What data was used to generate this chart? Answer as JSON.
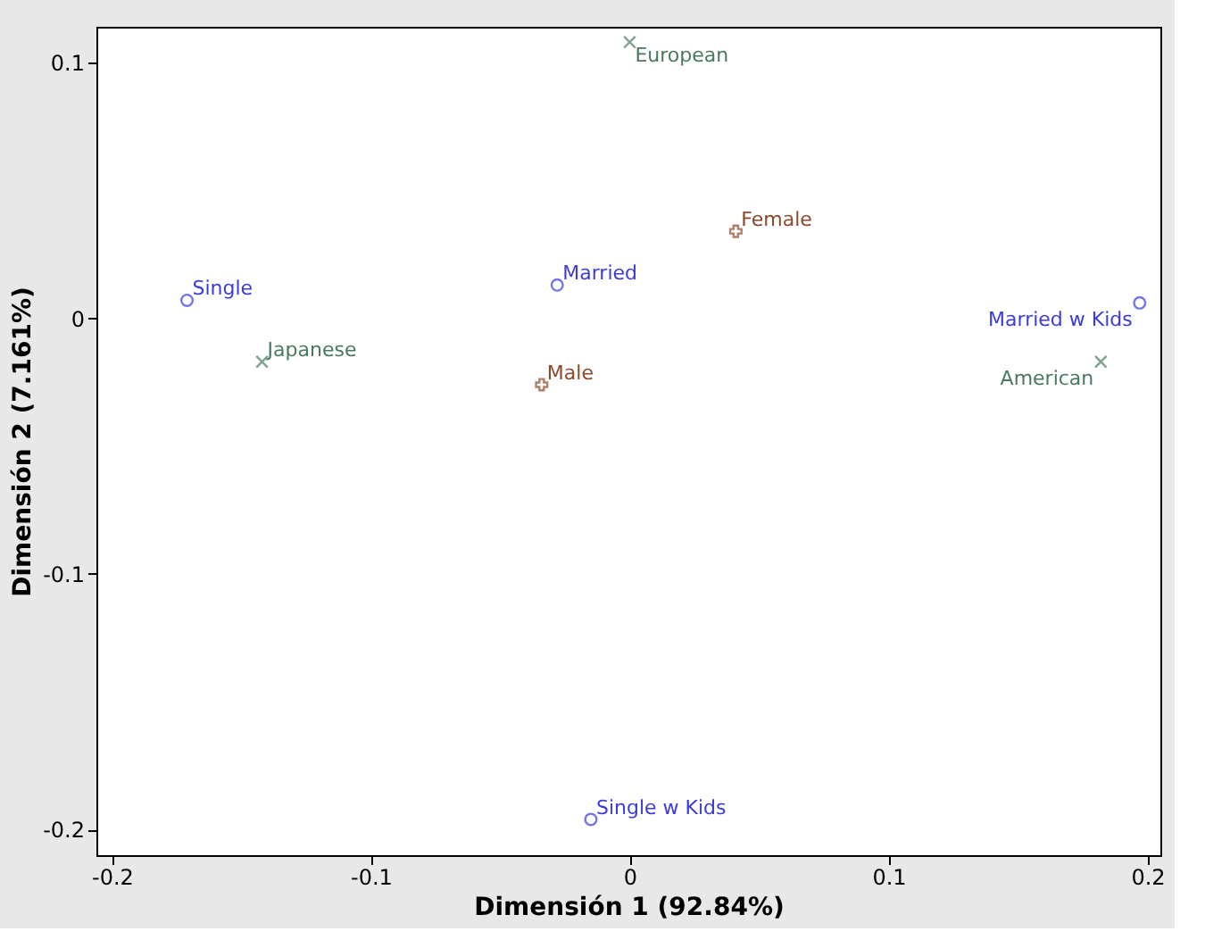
{
  "chart_data": {
    "type": "scatter",
    "xlabel": "Dimensión 1 (92.84%)",
    "ylabel": "Dimensión 2 (7.161%)",
    "xlim": [
      -0.206,
      0.205
    ],
    "ylim": [
      -0.21,
      0.114
    ],
    "xticks": [
      -0.2,
      -0.1,
      0,
      0.1,
      0.2
    ],
    "yticks": [
      -0.2,
      -0.1,
      0,
      0.1
    ],
    "grid": false,
    "series": [
      {
        "color": "#3c3cdc",
        "marker": "circle",
        "x": [
          -0.171,
          -0.028,
          0.197,
          -0.015
        ],
        "values": [
          0.007,
          0.013,
          0.006,
          -0.196
        ],
        "value_labels": [
          "Single",
          "Married",
          "Married w Kids",
          "Single w Kids"
        ]
      },
      {
        "color": "#4a7a5e",
        "marker": "x",
        "x": [
          -0.142,
          0.0,
          0.182
        ],
        "values": [
          -0.017,
          0.108,
          -0.017
        ],
        "value_labels": [
          "Japanese",
          "European",
          "American"
        ]
      },
      {
        "color": "#8c4a2c",
        "marker": "cross",
        "x": [
          0.041,
          -0.034
        ],
        "values": [
          0.034,
          -0.026
        ],
        "value_labels": [
          "Female",
          "Male"
        ]
      }
    ]
  }
}
